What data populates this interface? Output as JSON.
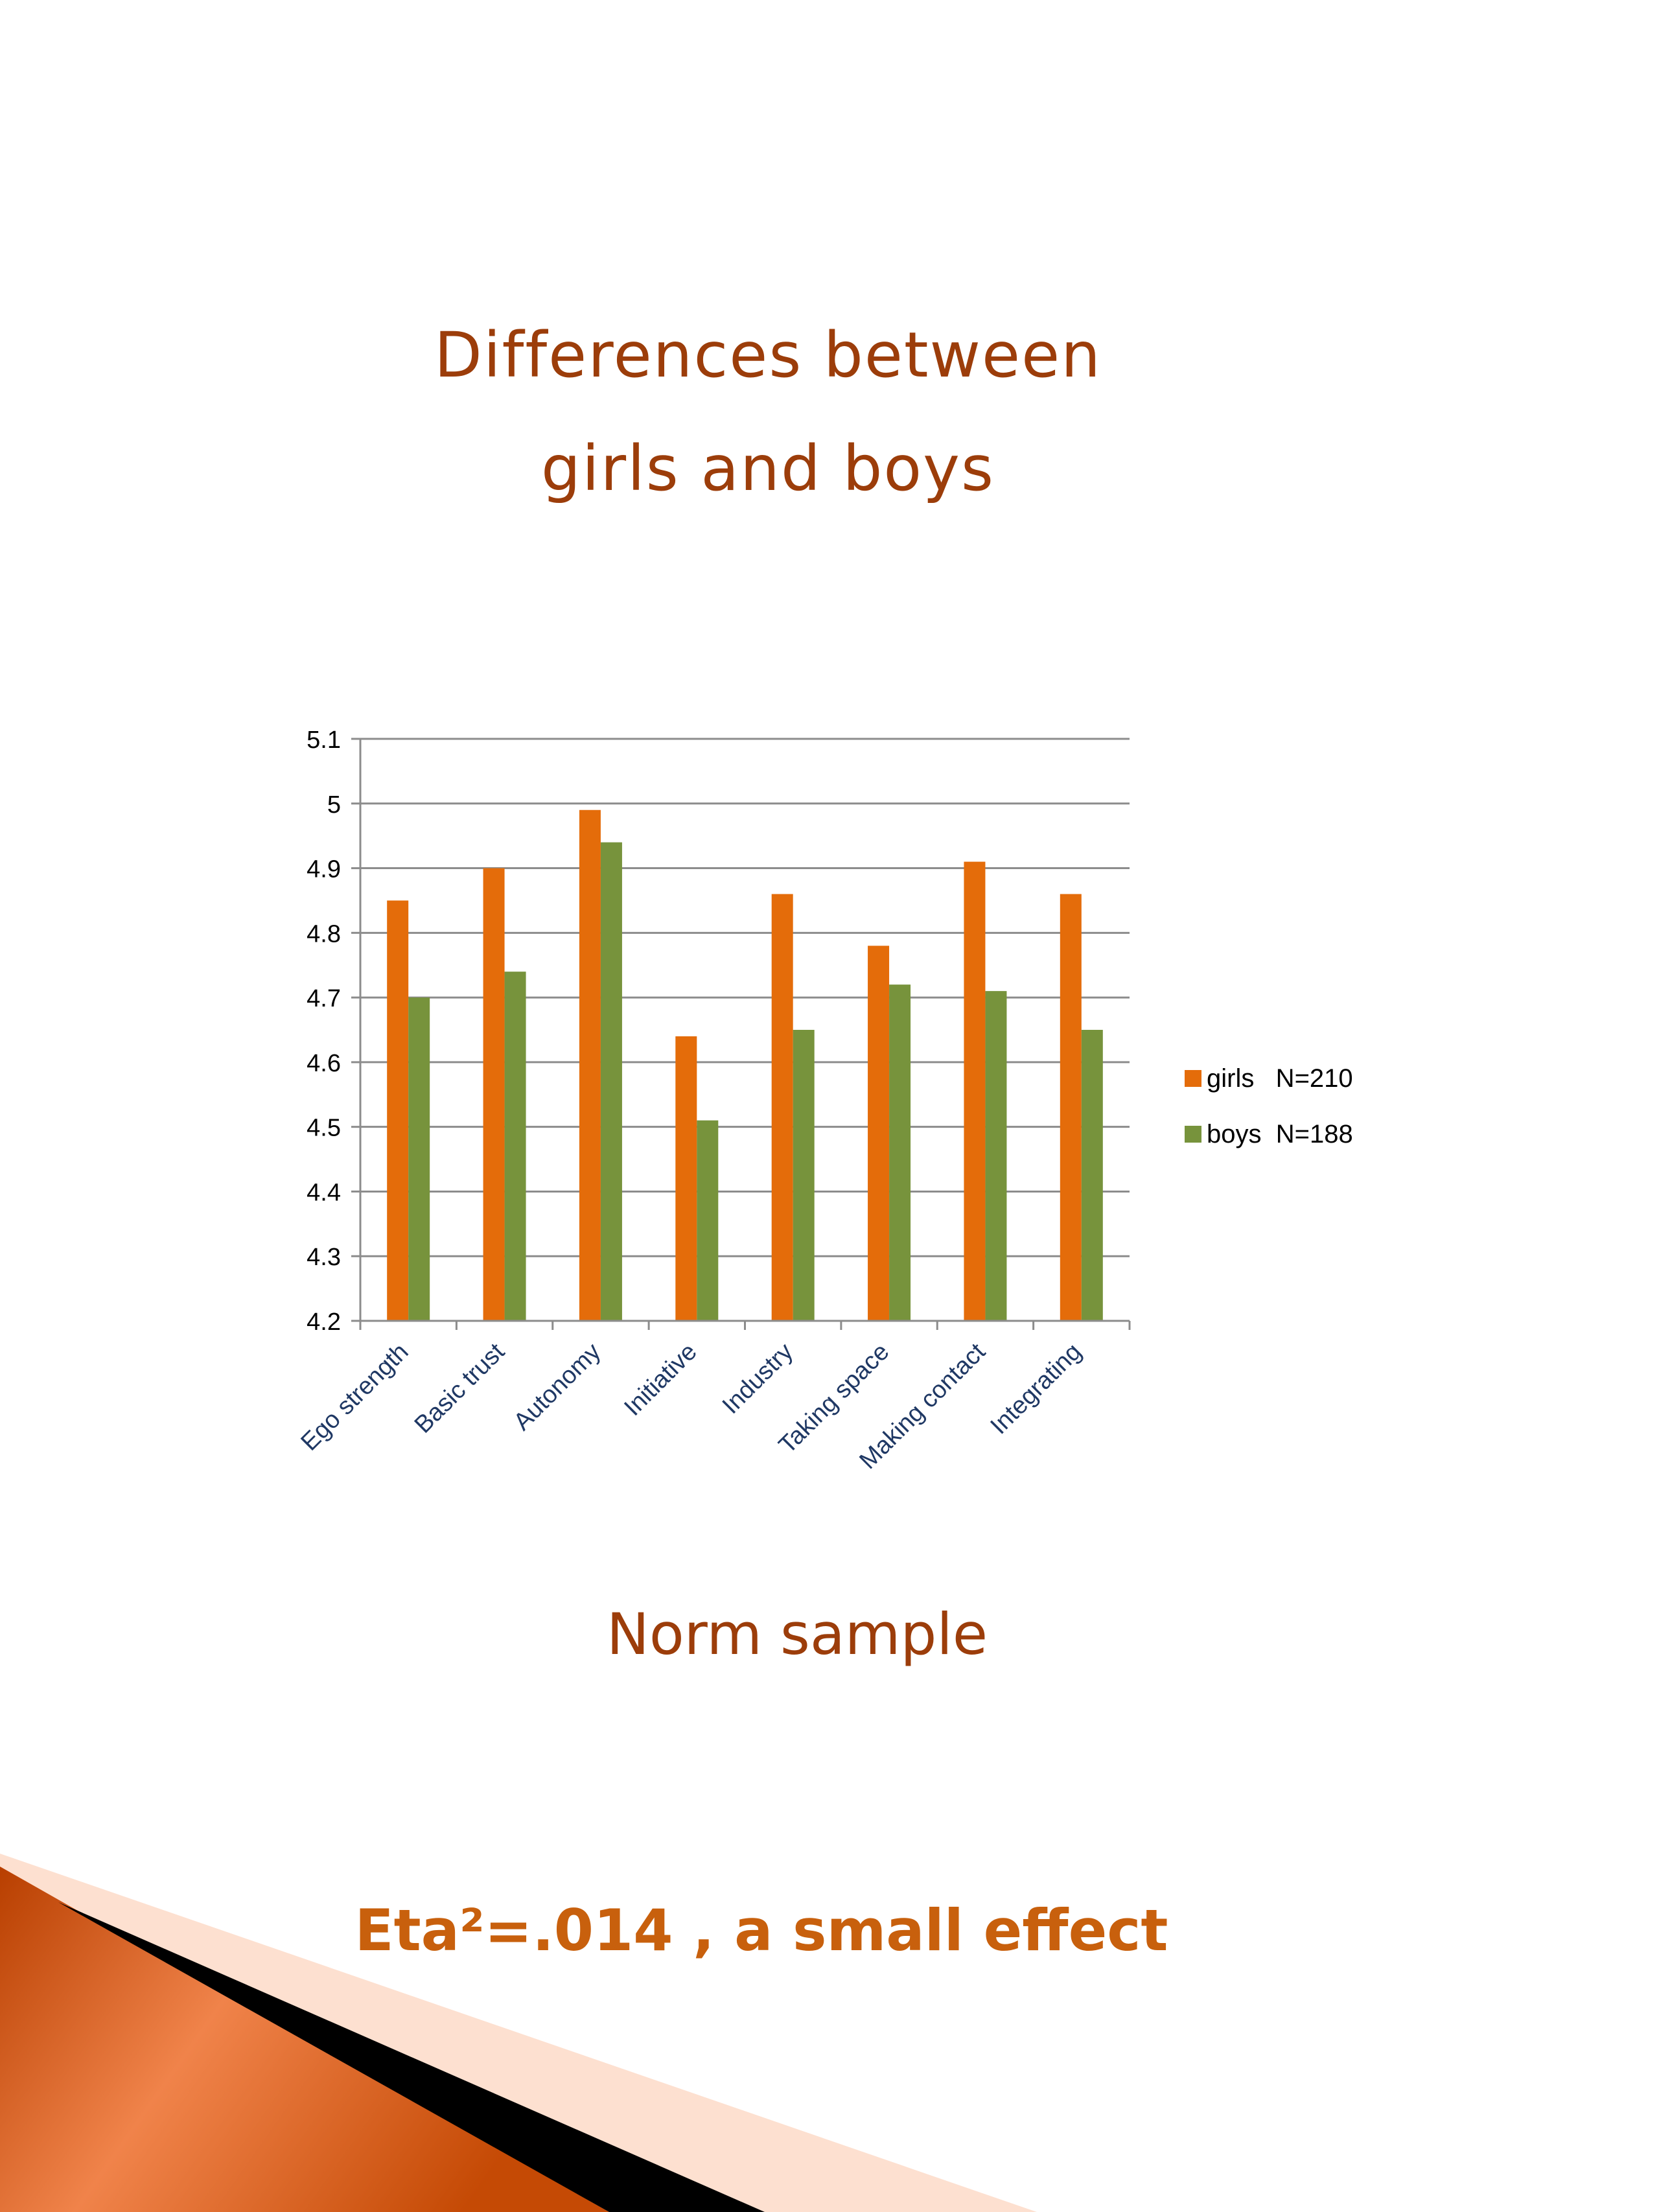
{
  "slide": {
    "title_line1": "Differences between",
    "title_line2": "girls and boys",
    "subtitle": "Norm sample",
    "effect_text": "Eta²=.014 , a small effect"
  },
  "colors": {
    "girls": "#e46c0a",
    "boys": "#77933c",
    "title": "#9c3d0a",
    "effect": "#c8600d",
    "gridline": "#8c8c8c",
    "tick_label": "#000000",
    "category_label": "#1f3864"
  },
  "chart_data": {
    "type": "bar",
    "categories": [
      "Ego strength",
      "Basic trust",
      "Autonomy",
      "Initiative",
      "Industry",
      "Taking space",
      "Making contact",
      "Integrating"
    ],
    "series": [
      {
        "name": "girls   N=210",
        "values": [
          4.85,
          4.9,
          4.99,
          4.64,
          4.86,
          4.78,
          4.91,
          4.86
        ]
      },
      {
        "name": "boys  N=188",
        "values": [
          4.7,
          4.74,
          4.94,
          4.51,
          4.65,
          4.72,
          4.71,
          4.65
        ]
      }
    ],
    "ylim": [
      4.2,
      5.1
    ],
    "yticks": [
      "4.2",
      "4.3",
      "4.4",
      "4.5",
      "4.6",
      "4.7",
      "4.8",
      "4.9",
      "5",
      "5.1"
    ],
    "grid": true,
    "legend": "right",
    "title": "",
    "xlabel": "",
    "ylabel": ""
  }
}
